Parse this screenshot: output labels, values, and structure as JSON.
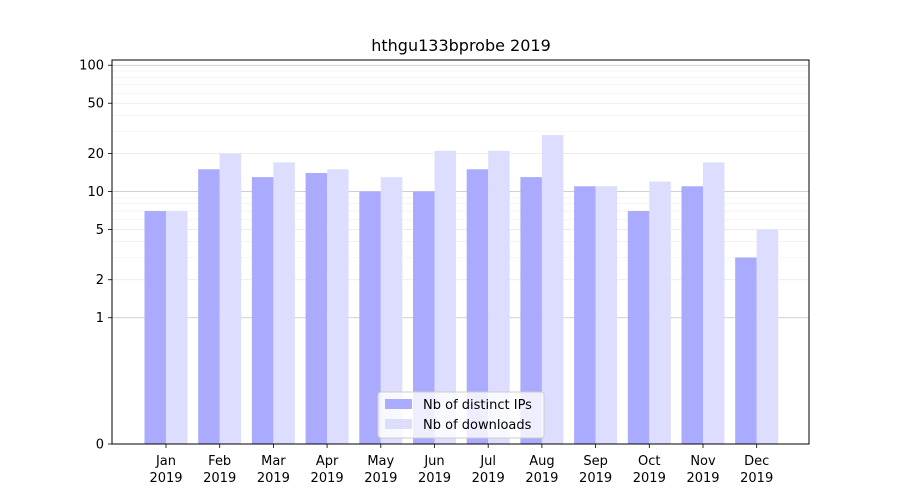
{
  "chart_data": {
    "type": "bar",
    "title": "hthgu133bprobe 2019",
    "xlabel": "",
    "ylabel": "",
    "y_scale": "symlog",
    "ylim": [
      0,
      110
    ],
    "y_ticks": [
      0,
      1,
      2,
      5,
      10,
      20,
      50,
      100
    ],
    "grid": "horizontal",
    "legend_position": "bottom-center",
    "categories": [
      [
        "Jan",
        "2019"
      ],
      [
        "Feb",
        "2019"
      ],
      [
        "Mar",
        "2019"
      ],
      [
        "Apr",
        "2019"
      ],
      [
        "May",
        "2019"
      ],
      [
        "Jun",
        "2019"
      ],
      [
        "Jul",
        "2019"
      ],
      [
        "Aug",
        "2019"
      ],
      [
        "Sep",
        "2019"
      ],
      [
        "Oct",
        "2019"
      ],
      [
        "Nov",
        "2019"
      ],
      [
        "Dec",
        "2019"
      ]
    ],
    "series": [
      {
        "name": "Nb of distinct IPs",
        "color": "#aaaaff",
        "values": [
          7,
          15,
          13,
          14,
          10,
          10,
          15,
          13,
          11,
          7,
          11,
          3
        ]
      },
      {
        "name": "Nb of downloads",
        "color": "#ddddff",
        "values": [
          7,
          20,
          17,
          15,
          13,
          21,
          21,
          28,
          11,
          12,
          17,
          5
        ]
      }
    ]
  }
}
